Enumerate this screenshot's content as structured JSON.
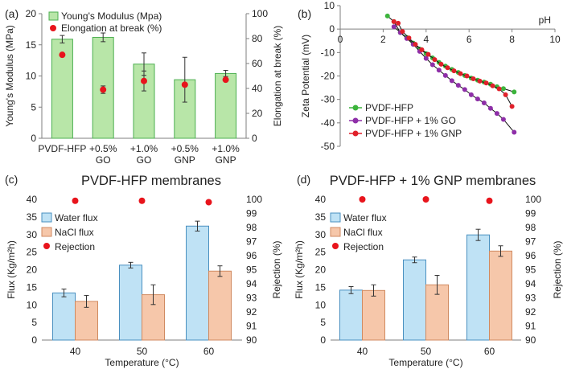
{
  "chart_data": [
    {
      "panel": "(a)",
      "type": "bar",
      "categories": [
        [
          "PVDF-HFP"
        ],
        [
          "+0.5%",
          "GO"
        ],
        [
          "+1.0%",
          "GO"
        ],
        [
          "+0.5%",
          "GNP"
        ],
        [
          "+1.0%",
          "GNP"
        ]
      ],
      "ylabel": "Young's Modulus (MPa)",
      "y2label": "Elongation at break (%)",
      "ylim": [
        0,
        20
      ],
      "yticks": [
        0,
        5,
        10,
        15,
        20
      ],
      "y2lim": [
        0,
        100
      ],
      "y2ticks": [
        0,
        20,
        40,
        60,
        80,
        100
      ],
      "legend": [
        "Young's Modulus (Mpa)",
        "Elongation at break (%)"
      ],
      "series": [
        {
          "name": "Young's Modulus (Mpa)",
          "axis": "left",
          "values": [
            15.9,
            16.2,
            11.9,
            9.4,
            10.4
          ],
          "errors": [
            0.6,
            0.7,
            1.8,
            3.6,
            0.5
          ]
        },
        {
          "name": "Elongation at break (%)",
          "axis": "right",
          "values": [
            67,
            39,
            46,
            43,
            47
          ],
          "errors": [
            0,
            3,
            8,
            0,
            0
          ]
        }
      ]
    },
    {
      "panel": "(b)",
      "type": "line",
      "xlabel": "pH",
      "ylabel": "Zeta Potential (mV)",
      "xlim": [
        0,
        10
      ],
      "xticks": [
        0,
        2,
        4,
        6,
        8,
        10
      ],
      "ylim": [
        -50,
        10
      ],
      "yticks": [
        10,
        0,
        -10,
        -20,
        -30,
        -40,
        -50
      ],
      "legend": [
        "PVDF-HFP",
        "PVDF-HFP + 1% GO",
        "PVDF-HFP + 1% GNP"
      ],
      "series": [
        {
          "name": "PVDF-HFP",
          "color": "#3cb43c",
          "x": [
            2.2,
            2.5,
            2.8,
            3.1,
            3.4,
            3.7,
            4.0,
            4.3,
            4.6,
            4.9,
            5.2,
            5.5,
            5.8,
            6.1,
            6.4,
            6.7,
            7.0,
            7.3,
            7.6,
            8.1
          ],
          "y": [
            5.6,
            3.2,
            -1.5,
            -3.6,
            -6.0,
            -8.5,
            -10.5,
            -12.3,
            -14.2,
            -15.8,
            -17.2,
            -18.5,
            -19.8,
            -20.9,
            -21.8,
            -22.6,
            -23.5,
            -24.6,
            -25.4,
            -26.8
          ]
        },
        {
          "name": "PVDF-HFP + 1% GO",
          "color": "#8e2fa8",
          "x": [
            2.5,
            2.8,
            3.1,
            3.4,
            3.7,
            4.0,
            4.3,
            4.6,
            4.9,
            5.2,
            5.5,
            5.8,
            6.1,
            6.4,
            6.7,
            7.0,
            7.3,
            7.6,
            8.1
          ],
          "y": [
            1.0,
            -1.5,
            -4.0,
            -6.5,
            -9.5,
            -12.5,
            -15.2,
            -17.5,
            -19.8,
            -22.0,
            -24.0,
            -25.8,
            -28.0,
            -29.8,
            -31.5,
            -33.8,
            -36.0,
            -38.5,
            -44.0
          ]
        },
        {
          "name": "PVDF-HFP + 1% GNP",
          "color": "#e0202a",
          "x": [
            2.5,
            2.7,
            2.9,
            3.2,
            3.5,
            3.8,
            4.1,
            4.4,
            4.7,
            5.0,
            5.3,
            5.6,
            5.9,
            6.2,
            6.5,
            6.8,
            7.1,
            7.4,
            7.7,
            8.0
          ],
          "y": [
            3.2,
            2.5,
            -1.0,
            -3.8,
            -6.5,
            -8.8,
            -10.8,
            -13.0,
            -15.0,
            -16.5,
            -17.8,
            -19.0,
            -20.0,
            -21.2,
            -22.2,
            -23.0,
            -24.2,
            -25.5,
            -28.0,
            -33.0
          ]
        }
      ]
    },
    {
      "panel": "(c)",
      "type": "bar",
      "title": "PVDF-HFP membranes",
      "categories": [
        "40",
        "50",
        "60"
      ],
      "xlabel": "Temperature (°C)",
      "ylabel": "Flux (Kg/m²h)",
      "y2label": "Rejection (%)",
      "ylim": [
        0,
        40
      ],
      "yticks": [
        0,
        5,
        10,
        15,
        20,
        25,
        30,
        35,
        40
      ],
      "y2lim": [
        90,
        100
      ],
      "y2ticks": [
        90,
        91,
        92,
        93,
        94,
        95,
        96,
        97,
        98,
        99,
        100
      ],
      "legend": [
        "Water flux",
        "NaCl flux",
        "Rejection"
      ],
      "series": [
        {
          "name": "Water flux",
          "axis": "left",
          "values": [
            13.4,
            21.3,
            32.4
          ],
          "errors": [
            1.1,
            0.8,
            1.4
          ]
        },
        {
          "name": "NaCl flux",
          "axis": "left",
          "values": [
            11.0,
            12.9,
            19.6
          ],
          "errors": [
            1.7,
            2.8,
            1.5
          ]
        },
        {
          "name": "Rejection",
          "axis": "right",
          "values": [
            99.9,
            99.9,
            99.8
          ]
        }
      ]
    },
    {
      "panel": "(d)",
      "type": "bar",
      "title": "PVDF-HFP + 1% GNP membranes",
      "categories": [
        "40",
        "50",
        "60"
      ],
      "xlabel": "Temperature (°C)",
      "ylabel": "Flux (Kg/m²h)",
      "y2label": "Rejection (%)",
      "ylim": [
        0,
        40
      ],
      "yticks": [
        0,
        5,
        10,
        15,
        20,
        25,
        30,
        35,
        40
      ],
      "y2lim": [
        90,
        100
      ],
      "y2ticks": [
        90,
        91,
        92,
        93,
        94,
        95,
        96,
        97,
        98,
        99,
        100
      ],
      "legend": [
        "Water flux",
        "NaCl flux",
        "Rejection"
      ],
      "series": [
        {
          "name": "Water flux",
          "axis": "left",
          "values": [
            14.2,
            22.8,
            29.9
          ],
          "errors": [
            1.0,
            0.8,
            1.6
          ]
        },
        {
          "name": "NaCl flux",
          "axis": "left",
          "values": [
            14.1,
            15.7,
            25.3
          ],
          "errors": [
            1.6,
            2.7,
            1.5
          ]
        },
        {
          "name": "Rejection",
          "axis": "right",
          "values": [
            100.0,
            100.0,
            99.9
          ]
        }
      ]
    }
  ],
  "colors": {
    "modulus_bar": "#b8e6a8",
    "modulus_edge": "#4caf50",
    "water_bar": "#bfe2f5",
    "water_edge": "#4a90c0",
    "nacl_bar": "#f6c7aa",
    "nacl_edge": "#d08a60",
    "marker": "#e8141c",
    "axis": "#7f7f7f"
  }
}
